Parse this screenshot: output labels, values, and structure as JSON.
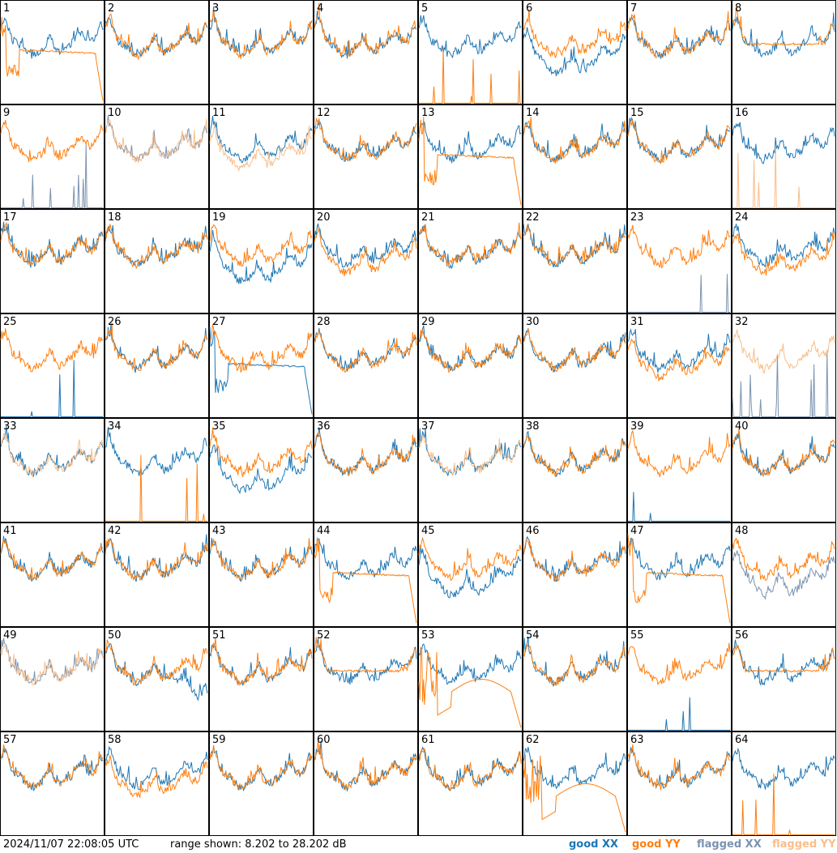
{
  "chart_data": {
    "type": "line",
    "grid_layout": "8 x 8 panels",
    "x_axis": "frequency channel (unlabeled)",
    "y_range_db": [
      8.202,
      28.202
    ],
    "panels": [
      {
        "id": "1",
        "xx": "good",
        "yy": "good",
        "shape": "yy-deep-dip-then-flat-plateau-drop"
      },
      {
        "id": "2",
        "xx": "good",
        "yy": "good",
        "shape": "normal"
      },
      {
        "id": "3",
        "xx": "good",
        "yy": "good",
        "shape": "normal"
      },
      {
        "id": "4",
        "xx": "good",
        "yy": "good",
        "shape": "normal"
      },
      {
        "id": "5",
        "xx": "good",
        "yy": "good",
        "shape": "yy-flat-with-spikes"
      },
      {
        "id": "6",
        "xx": "good",
        "yy": "good",
        "shape": "xx-deep"
      },
      {
        "id": "7",
        "xx": "good",
        "yy": "good",
        "shape": "normal"
      },
      {
        "id": "8",
        "xx": "good",
        "yy": "good",
        "shape": "yy-plateau"
      },
      {
        "id": "9",
        "xx": "flagged",
        "yy": "good",
        "shape": "xx-flat-with-spikes"
      },
      {
        "id": "10",
        "xx": "flagged",
        "yy": "flagged",
        "shape": "normal"
      },
      {
        "id": "11",
        "xx": "good",
        "yy": "flagged",
        "shape": "yy-low"
      },
      {
        "id": "12",
        "xx": "good",
        "yy": "good",
        "shape": "normal"
      },
      {
        "id": "13",
        "xx": "good",
        "yy": "good",
        "shape": "yy-deep-dip-then-flat-plateau-drop"
      },
      {
        "id": "14",
        "xx": "good",
        "yy": "good",
        "shape": "normal"
      },
      {
        "id": "15",
        "xx": "good",
        "yy": "good",
        "shape": "normal"
      },
      {
        "id": "16",
        "xx": "good",
        "yy": "flagged",
        "shape": "yy-flat-with-spikes"
      },
      {
        "id": "17",
        "xx": "good",
        "yy": "good",
        "shape": "normal"
      },
      {
        "id": "18",
        "xx": "good",
        "yy": "good",
        "shape": "normal"
      },
      {
        "id": "19",
        "xx": "good",
        "yy": "good",
        "shape": "xx-deep"
      },
      {
        "id": "20",
        "xx": "good",
        "yy": "good",
        "shape": "yy-low"
      },
      {
        "id": "21",
        "xx": "good",
        "yy": "good",
        "shape": "normal"
      },
      {
        "id": "22",
        "xx": "good",
        "yy": "good",
        "shape": "normal"
      },
      {
        "id": "23",
        "xx": "flagged",
        "yy": "good",
        "shape": "xx-flat-with-spikes"
      },
      {
        "id": "24",
        "xx": "good",
        "yy": "good",
        "shape": "yy-low"
      },
      {
        "id": "25",
        "xx": "good",
        "yy": "good",
        "shape": "xx-flat-with-spikes"
      },
      {
        "id": "26",
        "xx": "good",
        "yy": "good",
        "shape": "normal"
      },
      {
        "id": "27",
        "xx": "good",
        "yy": "good",
        "shape": "xx-deep-dip-then-flat-plateau-drop"
      },
      {
        "id": "28",
        "xx": "good",
        "yy": "good",
        "shape": "normal"
      },
      {
        "id": "29",
        "xx": "good",
        "yy": "good",
        "shape": "normal"
      },
      {
        "id": "30",
        "xx": "good",
        "yy": "good",
        "shape": "normal"
      },
      {
        "id": "31",
        "xx": "good",
        "yy": "good",
        "shape": "yy-low"
      },
      {
        "id": "32",
        "xx": "flagged",
        "yy": "flagged",
        "shape": "xx-flat-with-spikes"
      },
      {
        "id": "33",
        "xx": "good",
        "yy": "flagged",
        "shape": "normal"
      },
      {
        "id": "34",
        "xx": "good",
        "yy": "good",
        "shape": "yy-flat-with-spikes"
      },
      {
        "id": "35",
        "xx": "good",
        "yy": "good",
        "shape": "xx-deep"
      },
      {
        "id": "36",
        "xx": "good",
        "yy": "good",
        "shape": "normal"
      },
      {
        "id": "37",
        "xx": "good",
        "yy": "flagged",
        "shape": "normal"
      },
      {
        "id": "38",
        "xx": "good",
        "yy": "good",
        "shape": "normal"
      },
      {
        "id": "39",
        "xx": "good",
        "yy": "good",
        "shape": "xx-flat-with-spikes"
      },
      {
        "id": "40",
        "xx": "good",
        "yy": "good",
        "shape": "normal"
      },
      {
        "id": "41",
        "xx": "good",
        "yy": "good",
        "shape": "normal"
      },
      {
        "id": "42",
        "xx": "good",
        "yy": "good",
        "shape": "normal"
      },
      {
        "id": "43",
        "xx": "good",
        "yy": "good",
        "shape": "normal"
      },
      {
        "id": "44",
        "xx": "good",
        "yy": "good",
        "shape": "yy-deep-dip-then-flat-plateau-drop"
      },
      {
        "id": "45",
        "xx": "good",
        "yy": "good",
        "shape": "xx-deep"
      },
      {
        "id": "46",
        "xx": "good",
        "yy": "good",
        "shape": "normal"
      },
      {
        "id": "47",
        "xx": "good",
        "yy": "good",
        "shape": "yy-deep-dip-then-flat-plateau-drop"
      },
      {
        "id": "48",
        "xx": "flagged",
        "yy": "good",
        "shape": "xx-deep"
      },
      {
        "id": "49",
        "xx": "flagged",
        "yy": "flagged",
        "shape": "normal"
      },
      {
        "id": "50",
        "xx": "good",
        "yy": "good",
        "shape": "xx-decline"
      },
      {
        "id": "51",
        "xx": "good",
        "yy": "good",
        "shape": "normal"
      },
      {
        "id": "52",
        "xx": "good",
        "yy": "good",
        "shape": "yy-plateau"
      },
      {
        "id": "53",
        "xx": "good",
        "yy": "good",
        "shape": "yy-deep-dip-then-hump-drop"
      },
      {
        "id": "54",
        "xx": "good",
        "yy": "good",
        "shape": "normal"
      },
      {
        "id": "55",
        "xx": "good",
        "yy": "good",
        "shape": "xx-flat-with-spikes"
      },
      {
        "id": "56",
        "xx": "good",
        "yy": "good",
        "shape": "yy-plateau"
      },
      {
        "id": "57",
        "xx": "good",
        "yy": "good",
        "shape": "normal"
      },
      {
        "id": "58",
        "xx": "good",
        "yy": "good",
        "shape": "yy-low"
      },
      {
        "id": "59",
        "xx": "good",
        "yy": "good",
        "shape": "normal"
      },
      {
        "id": "60",
        "xx": "good",
        "yy": "good",
        "shape": "normal"
      },
      {
        "id": "61",
        "xx": "good",
        "yy": "good",
        "shape": "normal"
      },
      {
        "id": "62",
        "xx": "good",
        "yy": "good",
        "shape": "yy-deep-dip-then-hump-drop"
      },
      {
        "id": "63",
        "xx": "good",
        "yy": "good",
        "shape": "normal"
      },
      {
        "id": "64",
        "xx": "good",
        "yy": "good",
        "shape": "yy-flat-with-spikes"
      }
    ],
    "legend_placement": "bottom-right"
  },
  "footer": {
    "timestamp": "2024/11/07 22:08:05 UTC",
    "range_text": "range shown: 8.202 to 28.202 dB"
  },
  "legend": {
    "good_xx": "good XX",
    "good_yy": "good YY",
    "flagged_xx": "flagged XX",
    "flagged_yy": "flagged YY"
  },
  "colors": {
    "good_xx": "#1f77b4",
    "good_yy": "#ff7f0e",
    "flagged_xx": "#7b93b0",
    "flagged_yy": "#f9be8a",
    "border": "#000000"
  }
}
